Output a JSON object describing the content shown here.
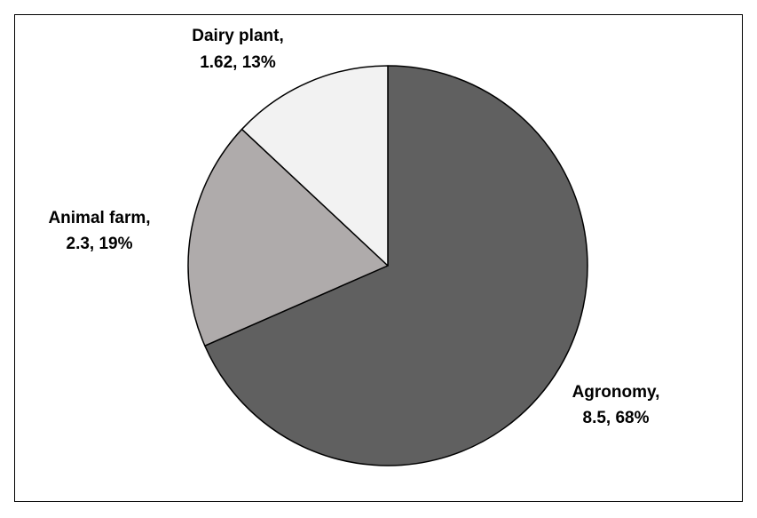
{
  "chart_data": {
    "type": "pie",
    "title": "",
    "slices": [
      {
        "label": "Agronomy",
        "value": 8.5,
        "percent": "68%",
        "color": "#606060"
      },
      {
        "label": "Animal farm",
        "value": 2.3,
        "percent": "19%",
        "color": "#afabab"
      },
      {
        "label": "Dairy plant",
        "value": 1.62,
        "percent": "13%",
        "color": "#f2f2f2"
      }
    ],
    "data_labels": [
      {
        "line1": "Agronomy,",
        "line2": "8.5, 68%"
      },
      {
        "line1": "Animal farm,",
        "line2": "2.3, 19%"
      },
      {
        "line1": "Dairy plant,",
        "line2": "1.62, 13%"
      }
    ],
    "legend": "none",
    "start": "12 o'clock, clockwise"
  }
}
